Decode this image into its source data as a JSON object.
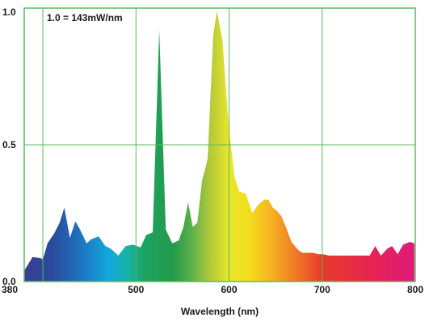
{
  "chart_data": {
    "type": "area",
    "title": "",
    "xlabel": "Wavelength (nm)",
    "ylabel": "",
    "annotation": "1.0 = 143mW/nm",
    "xlim": [
      380,
      800
    ],
    "ylim": [
      0,
      1.0
    ],
    "x_ticks": [
      380,
      500,
      600,
      700,
      800
    ],
    "x_tick_labels": [
      "380",
      "500",
      "600",
      "700",
      "800"
    ],
    "y_ticks": [
      0,
      0.5,
      1.0
    ],
    "y_tick_labels": [
      "0.0",
      "0.5",
      "1.0"
    ],
    "x_grid": [
      400,
      500,
      600,
      700
    ],
    "y_grid": [
      0.5
    ],
    "grid": true,
    "grid_color": "#5cb85c",
    "series": [
      {
        "x": [
          380,
          389,
          398,
          400,
          405,
          412,
          418,
          423,
          429,
          435,
          440,
          447,
          452,
          460,
          467,
          473,
          481,
          489,
          497,
          505,
          511,
          518,
          525,
          532,
          539,
          546,
          551,
          556,
          561,
          566,
          571,
          575,
          577,
          583,
          587,
          593,
          597,
          600,
          606,
          611,
          618,
          625,
          631,
          638,
          642,
          647,
          651,
          656,
          661,
          667,
          673,
          676,
          679,
          684,
          690,
          696,
          701,
          707,
          715,
          724,
          733,
          743,
          751,
          757,
          763,
          770,
          775,
          781,
          787,
          794,
          799
        ],
        "y": [
          0.04,
          0.09,
          0.085,
          0.08,
          0.14,
          0.175,
          0.215,
          0.27,
          0.16,
          0.22,
          0.19,
          0.14,
          0.155,
          0.165,
          0.13,
          0.12,
          0.095,
          0.13,
          0.135,
          0.125,
          0.17,
          0.18,
          0.92,
          0.19,
          0.14,
          0.15,
          0.2,
          0.29,
          0.2,
          0.215,
          0.37,
          0.42,
          0.45,
          0.9,
          0.99,
          0.88,
          0.68,
          0.56,
          0.38,
          0.33,
          0.32,
          0.25,
          0.28,
          0.3,
          0.3,
          0.27,
          0.26,
          0.24,
          0.2,
          0.145,
          0.12,
          0.11,
          0.105,
          0.105,
          0.105,
          0.1,
          0.1,
          0.095,
          0.095,
          0.095,
          0.095,
          0.095,
          0.095,
          0.13,
          0.095,
          0.12,
          0.13,
          0.1,
          0.135,
          0.145,
          0.14
        ]
      }
    ]
  }
}
